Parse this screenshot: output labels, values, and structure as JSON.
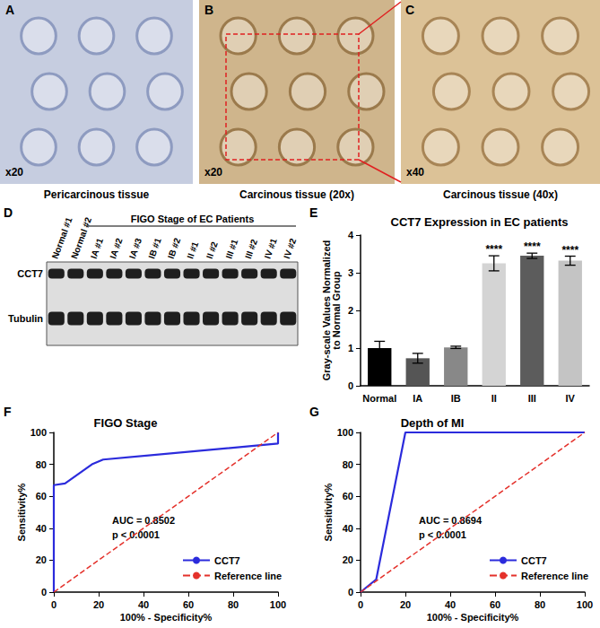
{
  "images": [
    {
      "panel": "A",
      "magnification": "x20",
      "caption": "Pericarcinous tissue"
    },
    {
      "panel": "B",
      "magnification": "x20",
      "caption": "Carcinous tissue (20x)"
    },
    {
      "panel": "C",
      "magnification": "x40",
      "caption": "Carcinous tissue (40x)"
    }
  ],
  "blot": {
    "panel": "D",
    "group_label": "FIGO Stage of EC Patients",
    "lanes": [
      "Normal #1",
      "Normal #2",
      "IA #1",
      "IA #2",
      "IA #3",
      "IB #1",
      "IB #2",
      "II #1",
      "II #2",
      "III #1",
      "III #2",
      "IV #1",
      "IV #2"
    ],
    "rows": [
      "CCT7",
      "Tubulin"
    ]
  },
  "chart_data": [
    {
      "panel": "E",
      "type": "bar",
      "title": "CCT7 Expression in EC patients",
      "y_label": "Gray-scale Values Normalized\nto Normal Group",
      "categories": [
        "Normal",
        "IA",
        "IB",
        "II",
        "III",
        "IV"
      ],
      "values": [
        1.0,
        0.73,
        1.02,
        3.25,
        3.45,
        3.32
      ],
      "errors": [
        0.18,
        0.13,
        0.03,
        0.2,
        0.07,
        0.12
      ],
      "significance": [
        null,
        null,
        null,
        "****",
        "****",
        "****"
      ],
      "colors": [
        "#000000",
        "#555555",
        "#888888",
        "#d4d4d4",
        "#5c5c5c",
        "#c4c4c4"
      ],
      "ylim": [
        0,
        4
      ],
      "yticks": [
        0,
        1,
        2,
        3,
        4
      ],
      "grid": false
    },
    {
      "panel": "F",
      "type": "line",
      "title": "FIGO Stage",
      "x_label": "100% - Specificity%",
      "y_label": "Sensitivity%",
      "xlim": [
        0,
        100
      ],
      "ylim": [
        0,
        100
      ],
      "xticks": [
        0,
        20,
        40,
        60,
        80,
        100
      ],
      "yticks": [
        0,
        20,
        40,
        60,
        80,
        100
      ],
      "series": [
        {
          "name": "CCT7",
          "color": "#2b2bdc",
          "line_style": "solid",
          "x": [
            0,
            0,
            5,
            17,
            22,
            100,
            100
          ],
          "values": [
            0,
            67,
            68,
            80,
            83,
            93,
            100
          ]
        },
        {
          "name": "Reference line",
          "color": "#e4312b",
          "line_style": "dashed",
          "x": [
            0,
            100
          ],
          "values": [
            0,
            100
          ]
        }
      ],
      "annotations": [
        "AUC = 0.8502",
        "p < 0.0001"
      ],
      "legend": "lower right",
      "grid": false
    },
    {
      "panel": "G",
      "type": "line",
      "title": "Depth of MI",
      "x_label": "100% - Specificity%",
      "y_label": "Sensitivity%",
      "xlim": [
        0,
        100
      ],
      "ylim": [
        0,
        100
      ],
      "xticks": [
        0,
        20,
        40,
        60,
        80,
        100
      ],
      "yticks": [
        0,
        20,
        40,
        60,
        80,
        100
      ],
      "series": [
        {
          "name": "CCT7",
          "color": "#2b2bdc",
          "line_style": "solid",
          "x": [
            0,
            7,
            20,
            100
          ],
          "values": [
            0,
            8,
            100,
            100
          ]
        },
        {
          "name": "Reference line",
          "color": "#e4312b",
          "line_style": "dashed",
          "x": [
            0,
            100
          ],
          "values": [
            0,
            100
          ]
        }
      ],
      "annotations": [
        "AUC = 0.8694",
        "p < 0.0001"
      ],
      "legend": "lower right",
      "grid": false
    }
  ]
}
